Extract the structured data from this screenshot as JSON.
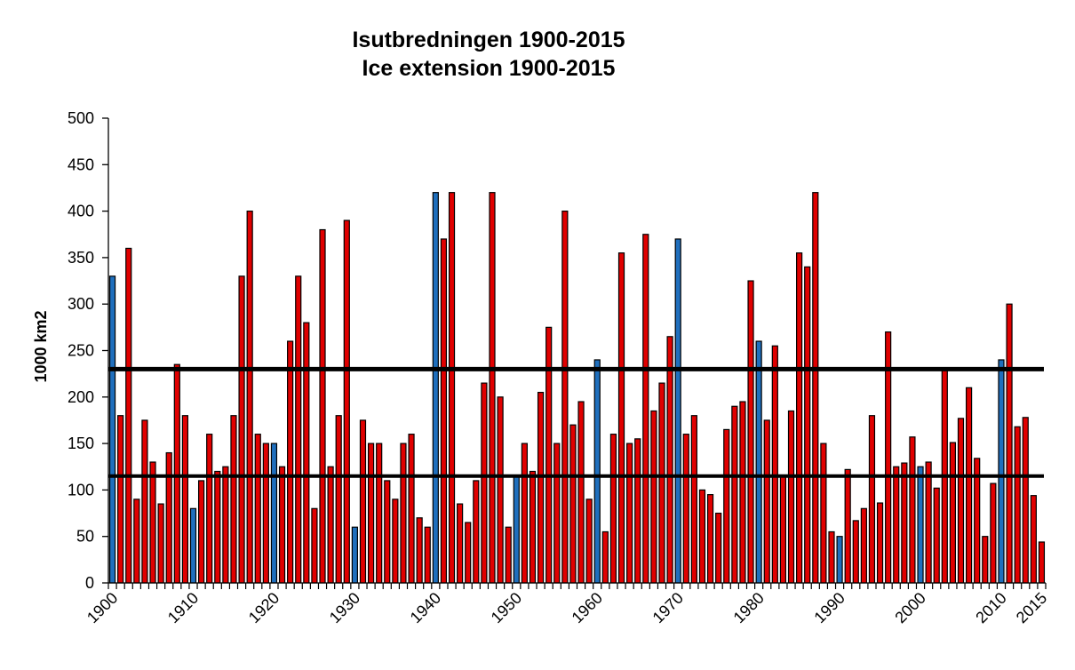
{
  "chart_data": {
    "type": "bar",
    "title": [
      "Isutbredningen 1900-2015",
      "Ice extension 1900-2015"
    ],
    "xlabel": "",
    "ylabel": "1000 km2",
    "ylim": [
      0,
      500
    ],
    "yticks": [
      "0",
      "50",
      "100",
      "150",
      "200",
      "250",
      "300",
      "350",
      "400",
      "450",
      "500"
    ],
    "xtick_labels": [
      "1900",
      "1910",
      "1920",
      "1930",
      "1940",
      "1950",
      "1960",
      "1970",
      "1980",
      "1990",
      "2000",
      "2010",
      "2015"
    ],
    "x_start_year": 1900,
    "x_end_year": 2015,
    "grid": false,
    "legend": "none",
    "colors": {
      "red": "#e00000",
      "blue": "#1f6fbd",
      "outline": "#000000",
      "refline": "#000000"
    },
    "reference_lines": [
      230,
      115
    ],
    "years": [
      1900,
      1901,
      1902,
      1903,
      1904,
      1905,
      1906,
      1907,
      1908,
      1909,
      1910,
      1911,
      1912,
      1913,
      1914,
      1915,
      1916,
      1917,
      1918,
      1919,
      1920,
      1921,
      1922,
      1923,
      1924,
      1925,
      1926,
      1927,
      1928,
      1929,
      1930,
      1931,
      1932,
      1933,
      1934,
      1935,
      1936,
      1937,
      1938,
      1939,
      1940,
      1941,
      1942,
      1943,
      1944,
      1945,
      1946,
      1947,
      1948,
      1949,
      1950,
      1951,
      1952,
      1953,
      1954,
      1955,
      1956,
      1957,
      1958,
      1959,
      1960,
      1961,
      1962,
      1963,
      1964,
      1965,
      1966,
      1967,
      1968,
      1969,
      1970,
      1971,
      1972,
      1973,
      1974,
      1975,
      1976,
      1977,
      1978,
      1979,
      1980,
      1981,
      1982,
      1983,
      1984,
      1985,
      1986,
      1987,
      1988,
      1989,
      1990,
      1991,
      1992,
      1993,
      1994,
      1995,
      1996,
      1997,
      1998,
      1999,
      2000,
      2001,
      2002,
      2003,
      2004,
      2005,
      2006,
      2007,
      2008,
      2009,
      2010,
      2011,
      2012,
      2013,
      2014,
      2015
    ],
    "values": [
      330,
      180,
      360,
      90,
      175,
      130,
      85,
      140,
      235,
      180,
      80,
      110,
      160,
      120,
      125,
      180,
      330,
      400,
      160,
      150,
      150,
      125,
      260,
      330,
      280,
      80,
      380,
      125,
      180,
      390,
      60,
      175,
      150,
      150,
      110,
      90,
      150,
      160,
      70,
      60,
      420,
      370,
      420,
      85,
      65,
      110,
      215,
      420,
      200,
      60,
      115,
      150,
      120,
      205,
      275,
      150,
      400,
      170,
      195,
      90,
      240,
      55,
      160,
      355,
      150,
      155,
      375,
      185,
      215,
      265,
      370,
      160,
      180,
      100,
      95,
      75,
      165,
      190,
      195,
      325,
      260,
      175,
      255,
      115,
      185,
      355,
      340,
      420,
      150,
      55,
      50,
      122,
      67,
      80,
      180,
      86,
      270,
      125,
      129,
      157,
      125,
      130,
      102,
      230,
      151,
      177,
      210,
      134,
      50,
      107,
      240,
      300,
      168,
      178,
      94,
      44
    ],
    "bar_colors": [
      "blue",
      "red",
      "red",
      "red",
      "red",
      "red",
      "red",
      "red",
      "red",
      "red",
      "blue",
      "red",
      "red",
      "red",
      "red",
      "red",
      "red",
      "red",
      "red",
      "red",
      "blue",
      "red",
      "red",
      "red",
      "red",
      "red",
      "red",
      "red",
      "red",
      "red",
      "blue",
      "red",
      "red",
      "red",
      "red",
      "red",
      "red",
      "red",
      "red",
      "red",
      "blue",
      "red",
      "red",
      "red",
      "red",
      "red",
      "red",
      "red",
      "red",
      "red",
      "blue",
      "red",
      "red",
      "red",
      "red",
      "red",
      "red",
      "red",
      "red",
      "red",
      "blue",
      "red",
      "red",
      "red",
      "red",
      "red",
      "red",
      "red",
      "red",
      "red",
      "blue",
      "red",
      "red",
      "red",
      "red",
      "red",
      "red",
      "red",
      "red",
      "red",
      "blue",
      "red",
      "red",
      "red",
      "red",
      "red",
      "red",
      "red",
      "red",
      "red",
      "blue",
      "red",
      "red",
      "red",
      "red",
      "red",
      "red",
      "red",
      "red",
      "red",
      "blue",
      "red",
      "red",
      "red",
      "red",
      "red",
      "red",
      "red",
      "red",
      "red",
      "blue",
      "red",
      "red",
      "red",
      "red",
      "red"
    ]
  }
}
